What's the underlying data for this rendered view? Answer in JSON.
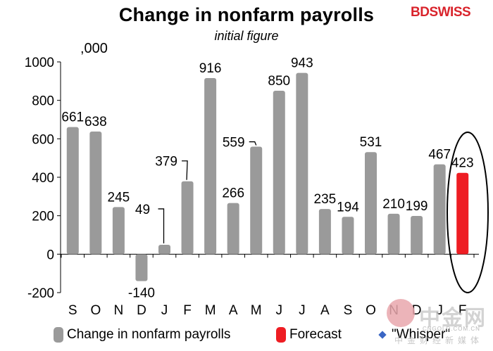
{
  "header": {
    "title": "Change in nonfarm payrolls",
    "subtitle": "initial figure",
    "units": ",000",
    "brand_bd": "BD",
    "brand_swiss": "SWISS"
  },
  "chart_data": {
    "type": "bar",
    "title": "Change in nonfarm payrolls",
    "subtitle": "initial figure",
    "ylabel": ",000",
    "categories": [
      "S",
      "O",
      "N",
      "D",
      "J",
      "F",
      "M",
      "A",
      "M",
      "J",
      "J",
      "A",
      "S",
      "O",
      "N",
      "D",
      "J",
      "F"
    ],
    "values": [
      661,
      638,
      245,
      -140,
      49,
      379,
      916,
      266,
      559,
      850,
      943,
      235,
      194,
      531,
      210,
      199,
      467,
      423
    ],
    "labels": [
      "661",
      "638",
      "245",
      "-140",
      "49",
      "379",
      "916",
      "266",
      "559",
      "850",
      "943",
      "235",
      "194",
      "531",
      "210",
      "199",
      "467",
      "423"
    ],
    "forecast_index": 17,
    "ylim": [
      -200,
      1000
    ],
    "yticks": [
      "-200",
      "0",
      "200",
      "400",
      "600",
      "800",
      "1000"
    ],
    "ytick_values": [
      -200,
      0,
      200,
      400,
      600,
      800,
      1000
    ],
    "grid": false,
    "series": [
      {
        "name": "Change in nonfarm payrolls",
        "color": "#9a9a9a"
      },
      {
        "name": "Forecast",
        "color": "#ee1d23"
      },
      {
        "name": "\"Whisper\"",
        "color": "#3a66c4"
      }
    ]
  },
  "legend": {
    "items": [
      {
        "label": "Change in nonfarm payrolls",
        "color": "#9a9a9a"
      },
      {
        "label": "Forecast",
        "color": "#ee1d23"
      },
      {
        "label": "\"Whisper\"",
        "color": "#3a66c4"
      }
    ]
  },
  "watermark": {
    "text": "中金网",
    "domain": "CNGOLD.COM.CN",
    "tagline": "中金财经新媒体"
  }
}
